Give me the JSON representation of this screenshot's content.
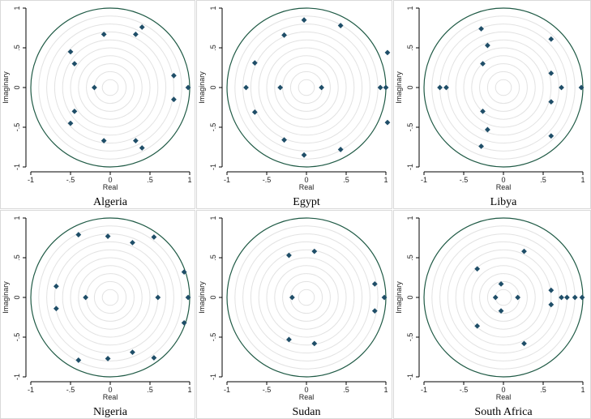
{
  "figure": {
    "colors": {
      "background": "#ffffff",
      "plot_background": "#ffffff",
      "unit_circle": "#1f5a45",
      "grid_circles": "#e2e2e2",
      "points": "#1f4e68",
      "axes": "#000000"
    }
  },
  "chart_data": [
    {
      "type": "scatter",
      "title": "Algeria",
      "xlabel": "Real",
      "ylabel": "Imaginary",
      "xlim": [
        -1,
        1
      ],
      "ylim": [
        -1,
        1
      ],
      "xticks": [
        "-1",
        "-.5",
        "0",
        ".5",
        "1"
      ],
      "yticks": [
        "-1",
        "-.5",
        "0",
        ".5",
        "1"
      ],
      "unit_circle": true,
      "grid": "concentric circles",
      "points": [
        {
          "x": -0.08,
          "y": 0.67
        },
        {
          "x": 0.32,
          "y": 0.67
        },
        {
          "x": 0.4,
          "y": 0.76
        },
        {
          "x": -0.5,
          "y": 0.45
        },
        {
          "x": -0.45,
          "y": 0.3
        },
        {
          "x": 0.8,
          "y": 0.15
        },
        {
          "x": -0.2,
          "y": 0.0
        },
        {
          "x": 0.98,
          "y": 0.0
        },
        {
          "x": 0.8,
          "y": -0.15
        },
        {
          "x": -0.45,
          "y": -0.3
        },
        {
          "x": -0.5,
          "y": -0.45
        },
        {
          "x": -0.08,
          "y": -0.67
        },
        {
          "x": 0.32,
          "y": -0.67
        },
        {
          "x": 0.4,
          "y": -0.76
        }
      ]
    },
    {
      "type": "scatter",
      "title": "Egypt",
      "xlabel": "Real",
      "ylabel": "Imaginary",
      "xlim": [
        -1,
        1
      ],
      "ylim": [
        -1,
        1
      ],
      "xticks": [
        "-1",
        "-.5",
        "0",
        ".5",
        "1"
      ],
      "yticks": [
        "-1",
        "-.5",
        "0",
        ".5",
        "1"
      ],
      "unit_circle": true,
      "grid": "concentric circles",
      "points": [
        {
          "x": -0.03,
          "y": 0.85
        },
        {
          "x": 0.43,
          "y": 0.78
        },
        {
          "x": -0.28,
          "y": 0.66
        },
        {
          "x": -0.65,
          "y": 0.31
        },
        {
          "x": 1.02,
          "y": 0.44
        },
        {
          "x": -0.76,
          "y": 0.0
        },
        {
          "x": -0.33,
          "y": 0.0
        },
        {
          "x": 0.19,
          "y": 0.0
        },
        {
          "x": 0.93,
          "y": 0.0
        },
        {
          "x": 1.0,
          "y": 0.0
        },
        {
          "x": -0.65,
          "y": -0.31
        },
        {
          "x": 1.02,
          "y": -0.44
        },
        {
          "x": -0.28,
          "y": -0.66
        },
        {
          "x": 0.43,
          "y": -0.78
        },
        {
          "x": -0.03,
          "y": -0.85
        }
      ]
    },
    {
      "type": "scatter",
      "title": "Libya",
      "xlabel": "Real",
      "ylabel": "Imaginary",
      "xlim": [
        -1,
        1
      ],
      "ylim": [
        -1,
        1
      ],
      "xticks": [
        "-1",
        "-.5",
        "0",
        ".5",
        "1"
      ],
      "yticks": [
        "-1",
        "-.5",
        "0",
        ".5",
        "1"
      ],
      "unit_circle": true,
      "grid": "concentric circles",
      "points": [
        {
          "x": -0.28,
          "y": 0.74
        },
        {
          "x": 0.6,
          "y": 0.61
        },
        {
          "x": -0.2,
          "y": 0.53
        },
        {
          "x": -0.26,
          "y": 0.3
        },
        {
          "x": 0.6,
          "y": 0.18
        },
        {
          "x": -0.8,
          "y": 0.0
        },
        {
          "x": -0.72,
          "y": 0.0
        },
        {
          "x": 0.73,
          "y": 0.0
        },
        {
          "x": 0.98,
          "y": 0.0
        },
        {
          "x": 0.6,
          "y": -0.18
        },
        {
          "x": -0.26,
          "y": -0.3
        },
        {
          "x": -0.2,
          "y": -0.53
        },
        {
          "x": 0.6,
          "y": -0.61
        },
        {
          "x": -0.28,
          "y": -0.74
        }
      ]
    },
    {
      "type": "scatter",
      "title": "Nigeria",
      "xlabel": "Real",
      "ylabel": "Imaginary",
      "xlim": [
        -1,
        1
      ],
      "ylim": [
        -1,
        1
      ],
      "xticks": [
        "-1",
        "-.5",
        "0",
        ".5",
        "1"
      ],
      "yticks": [
        "-1",
        "-.5",
        "0",
        ".5",
        "1"
      ],
      "unit_circle": true,
      "grid": "concentric circles",
      "points": [
        {
          "x": -0.4,
          "y": 0.79
        },
        {
          "x": -0.03,
          "y": 0.77
        },
        {
          "x": 0.28,
          "y": 0.69
        },
        {
          "x": 0.55,
          "y": 0.76
        },
        {
          "x": -0.68,
          "y": 0.14
        },
        {
          "x": 0.93,
          "y": 0.32
        },
        {
          "x": -0.31,
          "y": 0.0
        },
        {
          "x": 0.6,
          "y": 0.0
        },
        {
          "x": 0.98,
          "y": 0.0
        },
        {
          "x": -0.68,
          "y": -0.14
        },
        {
          "x": 0.93,
          "y": -0.32
        },
        {
          "x": -0.4,
          "y": -0.79
        },
        {
          "x": -0.03,
          "y": -0.77
        },
        {
          "x": 0.28,
          "y": -0.69
        },
        {
          "x": 0.55,
          "y": -0.76
        }
      ]
    },
    {
      "type": "scatter",
      "title": "Sudan",
      "xlabel": "Real",
      "ylabel": "Imaginary",
      "xlim": [
        -1,
        1
      ],
      "ylim": [
        -1,
        1
      ],
      "xticks": [
        "-1",
        "-.5",
        "0",
        ".5",
        "1"
      ],
      "yticks": [
        "-1",
        "-.5",
        "0",
        ".5",
        "1"
      ],
      "unit_circle": true,
      "grid": "concentric circles",
      "points": [
        {
          "x": -0.22,
          "y": 0.53
        },
        {
          "x": 0.1,
          "y": 0.58
        },
        {
          "x": 0.86,
          "y": 0.17
        },
        {
          "x": -0.18,
          "y": 0.0
        },
        {
          "x": 0.98,
          "y": 0.0
        },
        {
          "x": 0.86,
          "y": -0.17
        },
        {
          "x": -0.22,
          "y": -0.53
        },
        {
          "x": 0.1,
          "y": -0.58
        }
      ]
    },
    {
      "type": "scatter",
      "title": "South Africa",
      "xlabel": "Real",
      "ylabel": "Imaginary",
      "xlim": [
        -1,
        1
      ],
      "ylim": [
        -1,
        1
      ],
      "xticks": [
        "-1",
        "-.5",
        "0",
        ".5",
        "1"
      ],
      "yticks": [
        "-1",
        "-.5",
        "0",
        ".5",
        "1"
      ],
      "unit_circle": true,
      "grid": "concentric circles",
      "points": [
        {
          "x": -0.33,
          "y": 0.36
        },
        {
          "x": 0.26,
          "y": 0.58
        },
        {
          "x": -0.03,
          "y": 0.17
        },
        {
          "x": 0.6,
          "y": 0.09
        },
        {
          "x": -0.1,
          "y": 0.0
        },
        {
          "x": 0.18,
          "y": 0.0
        },
        {
          "x": 0.73,
          "y": 0.0
        },
        {
          "x": 0.8,
          "y": 0.0
        },
        {
          "x": 0.9,
          "y": 0.0
        },
        {
          "x": 0.99,
          "y": 0.0
        },
        {
          "x": 0.6,
          "y": -0.09
        },
        {
          "x": -0.03,
          "y": -0.17
        },
        {
          "x": -0.33,
          "y": -0.36
        },
        {
          "x": 0.26,
          "y": -0.58
        }
      ]
    }
  ]
}
